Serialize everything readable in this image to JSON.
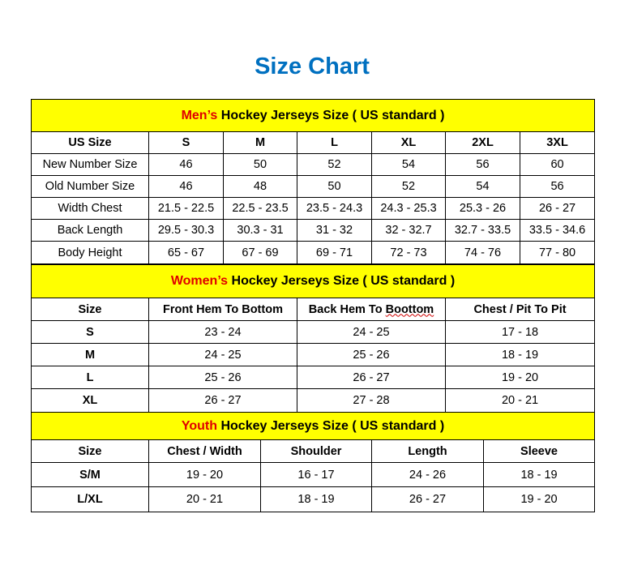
{
  "title": "Size Chart",
  "colors": {
    "title": "#0070C0",
    "header_bg": "#FFFF00",
    "header_accent": "#E00000"
  },
  "mens": {
    "heading_accent": "Men’s",
    "heading_rest": " Hockey Jerseys Size ( US standard )",
    "columns": [
      "US Size",
      "S",
      "M",
      "L",
      "XL",
      "2XL",
      "3XL"
    ],
    "rows": [
      [
        "New Number Size",
        "46",
        "50",
        "52",
        "54",
        "56",
        "60"
      ],
      [
        "Old Number Size",
        "46",
        "48",
        "50",
        "52",
        "54",
        "56"
      ],
      [
        "Width Chest",
        "21.5 - 22.5",
        "22.5 - 23.5",
        "23.5 - 24.3",
        "24.3 - 25.3",
        "25.3 - 26",
        "26 - 27"
      ],
      [
        "Back Length",
        "29.5 - 30.3",
        "30.3 - 31",
        "31 - 32",
        "32 - 32.7",
        "32.7 - 33.5",
        "33.5 - 34.6"
      ],
      [
        "Body Height",
        "65 - 67",
        "67 - 69",
        "69 - 71",
        "72 - 73",
        "74 - 76",
        "77 - 80"
      ]
    ]
  },
  "womens": {
    "heading_accent": "Women’s",
    "heading_rest": " Hockey Jerseys Size ( US standard )",
    "columns": [
      "Size",
      "Front Hem To Bottom",
      "Back Hem To Boottom",
      "Chest / Pit To Pit"
    ],
    "rows": [
      [
        "S",
        "23 - 24",
        "24 - 25",
        "17 - 18"
      ],
      [
        "M",
        "24 - 25",
        "25 - 26",
        "18 - 19"
      ],
      [
        "L",
        "25 - 26",
        "26 - 27",
        "19 - 20"
      ],
      [
        "XL",
        "26 - 27",
        "27 - 28",
        "20 - 21"
      ]
    ]
  },
  "youth": {
    "heading_accent": "Youth",
    "heading_rest": " Hockey Jerseys Size ( US standard )",
    "columns": [
      "Size",
      "Chest / Width",
      "Shoulder",
      "Length",
      "Sleeve"
    ],
    "rows": [
      [
        "S/M",
        "19 - 20",
        "16 - 17",
        "24 - 26",
        "18 - 19"
      ],
      [
        "L/XL",
        "20 - 21",
        "18 - 19",
        "26 - 27",
        "19 - 20"
      ]
    ]
  }
}
